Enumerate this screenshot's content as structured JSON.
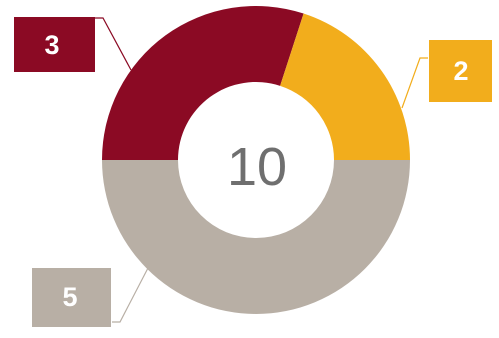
{
  "chart_data": {
    "type": "pie",
    "variant": "donut",
    "total_label": "10",
    "slices": [
      {
        "label": "3",
        "value": 3,
        "color": "#8b0a24"
      },
      {
        "label": "2",
        "value": 2,
        "color": "#f2ad1c"
      },
      {
        "label": "5",
        "value": 5,
        "color": "#b8afa5"
      }
    ],
    "title": "",
    "legend": "none"
  }
}
